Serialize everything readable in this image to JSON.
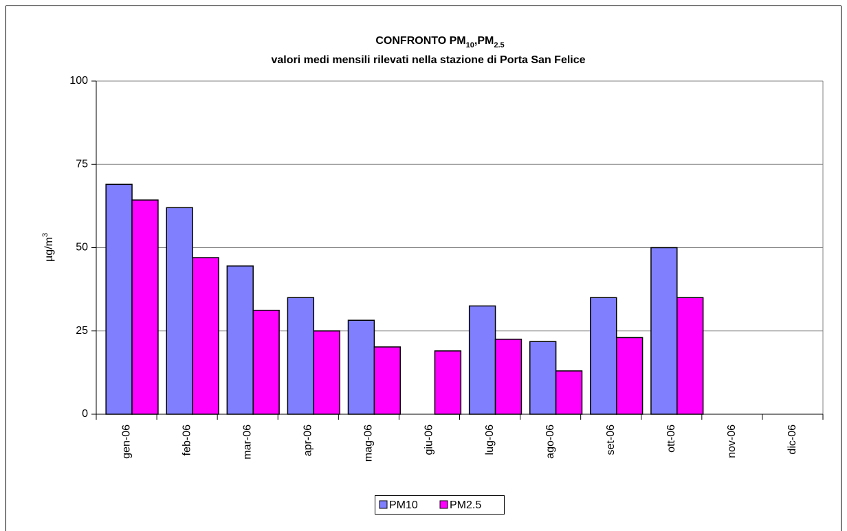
{
  "chart_data": {
    "type": "bar",
    "title": [
      {
        "text": "CONFRONTO PM"
      },
      {
        "text": "10",
        "sub": true
      },
      {
        "text": ",PM"
      },
      {
        "text": "2.5",
        "sub": true
      }
    ],
    "subtitle": "valori medi mensili rilevati nella stazione di Porta San Felice",
    "ylabel": [
      {
        "text": "µg/m"
      },
      {
        "text": "3",
        "sup": true
      }
    ],
    "categories": [
      "gen-06",
      "feb-06",
      "mar-06",
      "apr-06",
      "mag-06",
      "giu-06",
      "lug-06",
      "ago-06",
      "set-06",
      "ott-06",
      "nov-06",
      "dic-06"
    ],
    "series": [
      {
        "name": "PM10",
        "color": "#8080ff",
        "values": [
          69,
          62,
          44.5,
          35,
          28.2,
          null,
          32.5,
          21.8,
          35,
          50,
          null,
          null
        ]
      },
      {
        "name": "PM2.5",
        "color": "#ff00ff",
        "values": [
          64.3,
          47,
          31.2,
          25,
          20.2,
          19,
          22.5,
          13,
          23,
          35,
          null,
          null
        ]
      }
    ],
    "ylim": [
      0,
      100
    ],
    "yticks": [
      0,
      25,
      50,
      75,
      100
    ],
    "grid": true,
    "legend": "bottom"
  }
}
